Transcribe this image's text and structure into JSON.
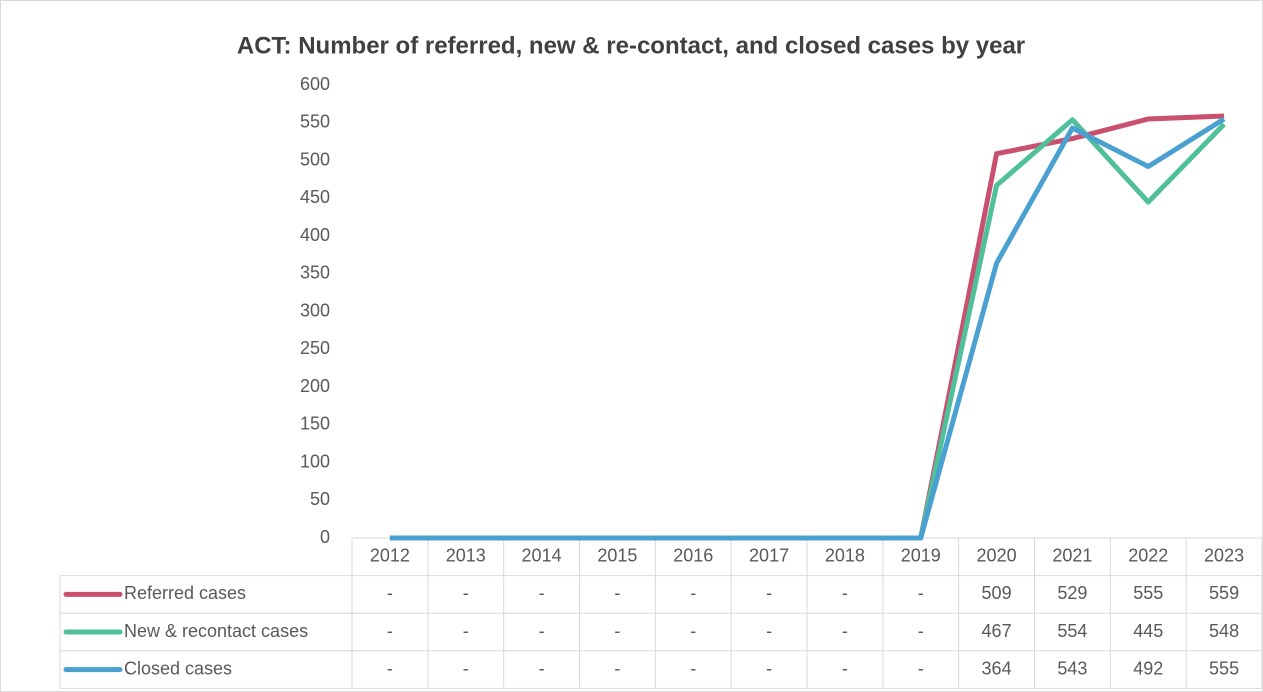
{
  "chart_data": {
    "type": "line",
    "title": "ACT: Number of referred, new & re-contact, and closed cases by year",
    "categories": [
      "2012",
      "2013",
      "2014",
      "2015",
      "2016",
      "2017",
      "2018",
      "2019",
      "2020",
      "2021",
      "2022",
      "2023"
    ],
    "series": [
      {
        "name": "Referred cases",
        "color": "#c9506f",
        "values": [
          0,
          0,
          0,
          0,
          0,
          0,
          0,
          0,
          509,
          529,
          555,
          559
        ],
        "value_labels": [
          "-",
          "-",
          "-",
          "-",
          "-",
          "-",
          "-",
          "-",
          "509",
          "529",
          "555",
          "559"
        ]
      },
      {
        "name": "New & recontact cases",
        "color": "#4fc09a",
        "values": [
          0,
          0,
          0,
          0,
          0,
          0,
          0,
          0,
          467,
          554,
          445,
          548
        ],
        "value_labels": [
          "-",
          "-",
          "-",
          "-",
          "-",
          "-",
          "-",
          "-",
          "467",
          "554",
          "445",
          "548"
        ]
      },
      {
        "name": "Closed cases",
        "color": "#4aa0d0",
        "values": [
          0,
          0,
          0,
          0,
          0,
          0,
          0,
          0,
          364,
          543,
          492,
          555
        ],
        "value_labels": [
          "-",
          "-",
          "-",
          "-",
          "-",
          "-",
          "-",
          "-",
          "364",
          "543",
          "492",
          "555"
        ]
      }
    ],
    "ylim": [
      0,
      600
    ],
    "yticks": [
      0,
      50,
      100,
      150,
      200,
      250,
      300,
      350,
      400,
      450,
      500,
      550,
      600
    ],
    "grid": false
  }
}
